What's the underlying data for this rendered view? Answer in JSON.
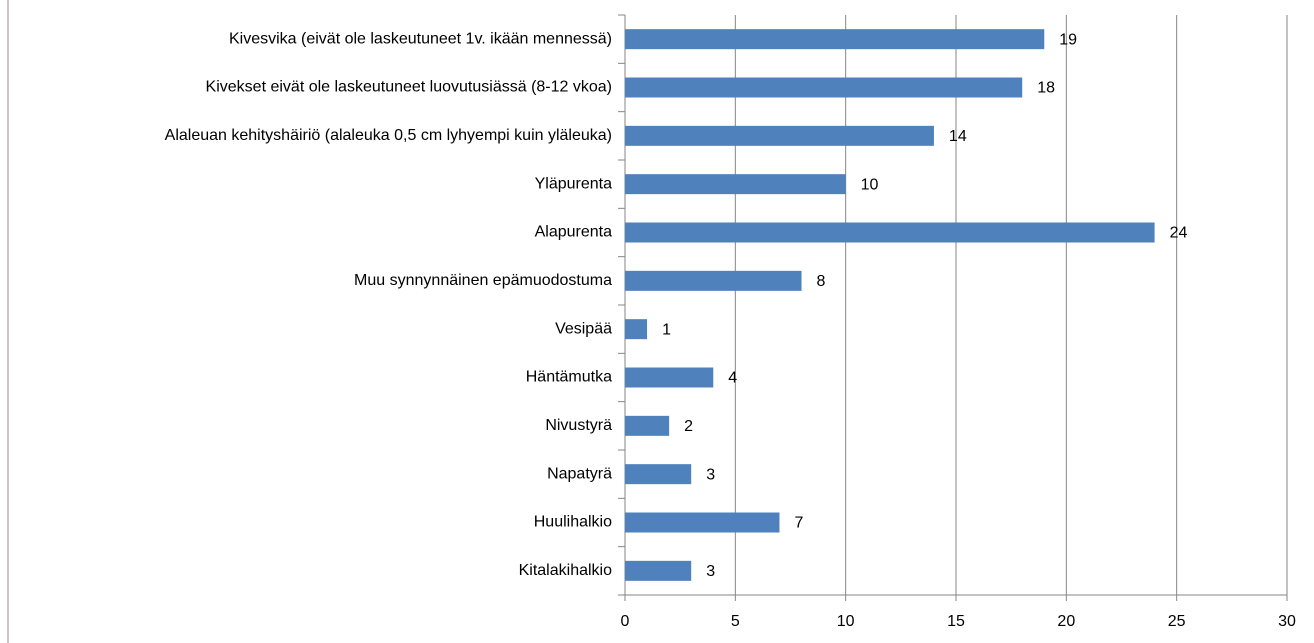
{
  "chart_data": {
    "type": "barh",
    "categories": [
      "Kivesvika (eivät ole laskeutuneet 1v. ikään mennessä)",
      "Kivekset eivät ole laskeutuneet luovutusiässä (8-12 vkoa)",
      "Alaleuan kehityshäiriö (alaleuka 0,5 cm lyhyempi kuin yläleuka)",
      "Yläpurenta",
      "Alapurenta",
      "Muu synnynnäinen epämuodostuma",
      "Vesipää",
      "Häntämutka",
      "Nivustyrä",
      "Napatyrä",
      "Huulihalkio",
      "Kitalakihalkio"
    ],
    "values": [
      19,
      18,
      14,
      10,
      24,
      8,
      1,
      4,
      2,
      3,
      7,
      3
    ],
    "color": "#4f81bd",
    "xlim": [
      0,
      30
    ],
    "xticks": [
      0,
      5,
      10,
      15,
      20,
      25,
      30
    ],
    "grid": true
  }
}
